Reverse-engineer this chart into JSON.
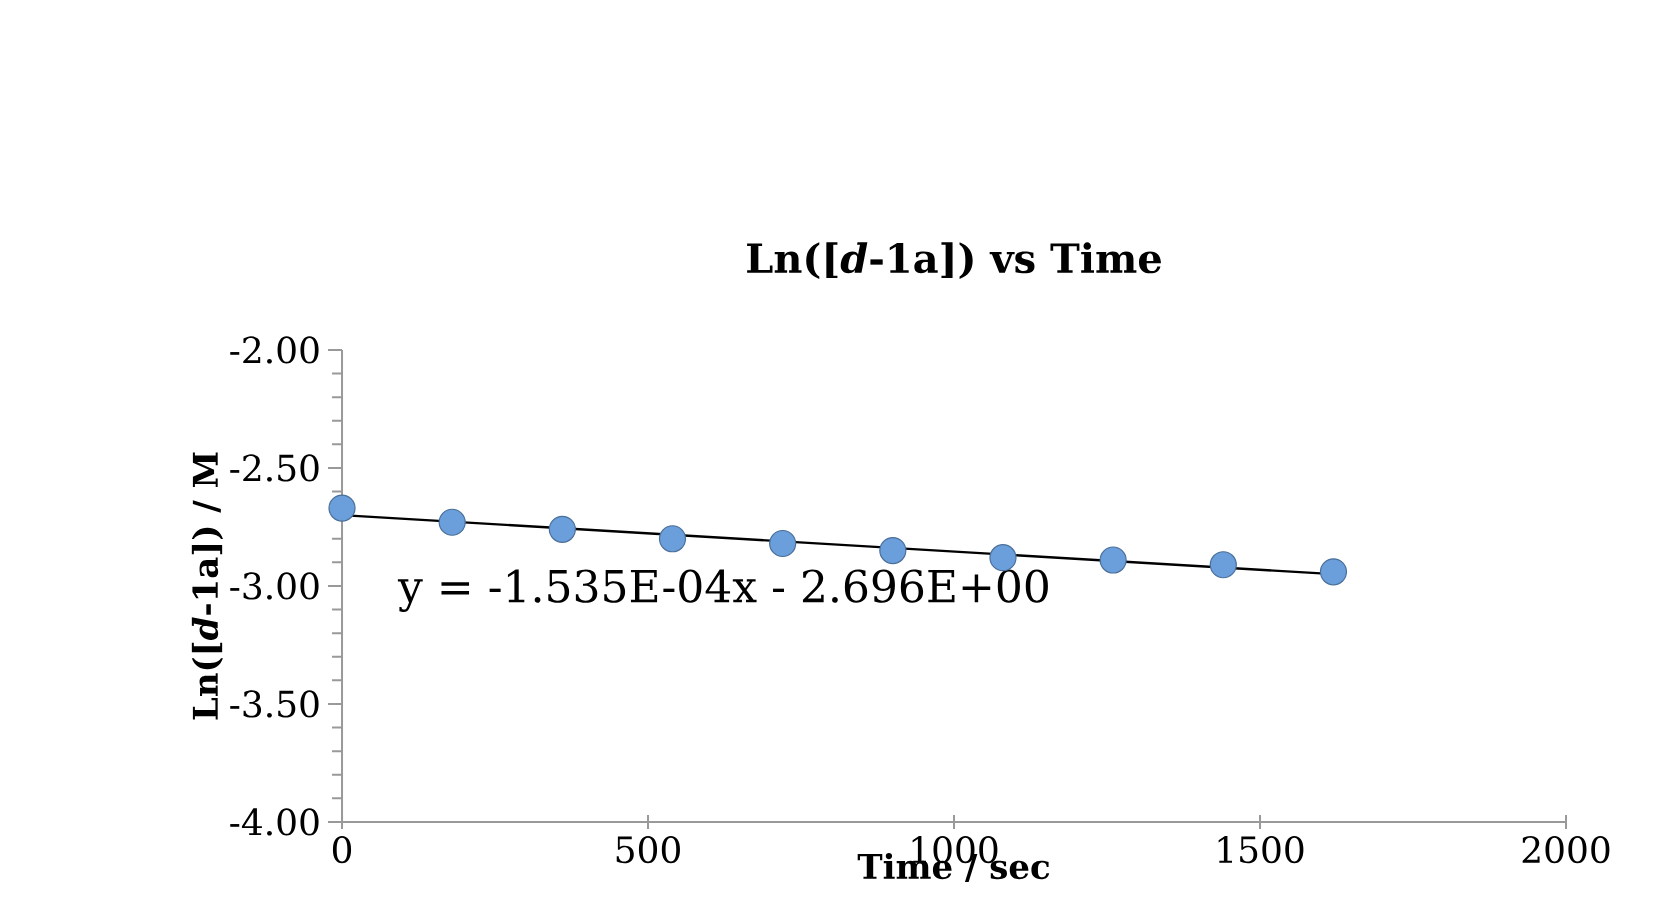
{
  "chart_data": {
    "type": "scatter",
    "title": "Ln([*d*-1a]) vs Time",
    "xlabel": "Time / sec",
    "ylabel": "Ln([*d*-1a]) / M",
    "x": [
      0,
      180,
      360,
      540,
      720,
      900,
      1080,
      1260,
      1440,
      1620
    ],
    "series": [
      {
        "type": "scatter",
        "color": "#6a9fdc",
        "marker": "circle",
        "values": [
          -2.67,
          -2.73,
          -2.76,
          -2.8,
          -2.82,
          -2.85,
          -2.88,
          -2.89,
          -2.91,
          -2.94
        ]
      },
      {
        "type": "line",
        "color": "#000000",
        "marker": "none",
        "line_style": "solid",
        "x": [
          0,
          1620
        ],
        "values": [
          -2.7,
          -2.95
        ]
      }
    ],
    "xlim": [
      0,
      2000
    ],
    "xticks": [
      0,
      500,
      1000,
      1500,
      2000
    ],
    "ylim": [
      -4,
      -2
    ],
    "yticks": [
      {
        "value": -4,
        "label": "-4.00"
      },
      {
        "value": -3.5,
        "label": "-3.50"
      },
      {
        "value": -3,
        "label": "-3.00"
      },
      {
        "value": -2.5,
        "label": "-2.50"
      },
      {
        "value": -2,
        "label": "-2.00"
      }
    ],
    "grid": false,
    "annotations": [
      "y = -1.535E-04x - 2.696E+00"
    ]
  }
}
